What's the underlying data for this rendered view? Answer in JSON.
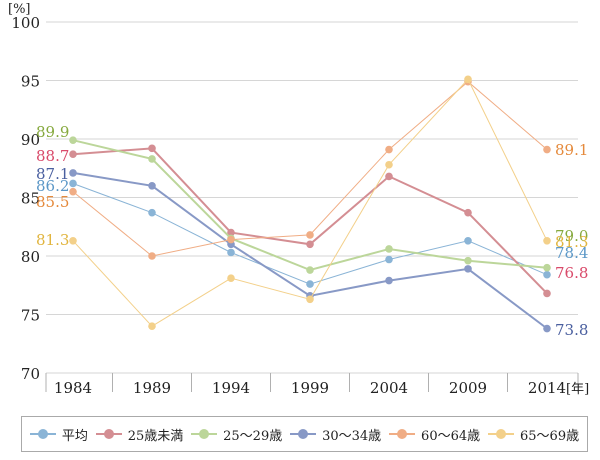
{
  "chart_data": {
    "type": "line",
    "y_unit_label": "[%]",
    "x_unit_label": "[年]",
    "categories": [
      "1984",
      "1989",
      "1994",
      "1999",
      "2004",
      "2009",
      "2014"
    ],
    "ylim": [
      70,
      100
    ],
    "yticks": [
      70,
      75,
      80,
      85,
      90,
      95,
      100
    ],
    "grid": "horizontal",
    "legend_position": "bottom",
    "series": [
      {
        "name": "平均",
        "color": "#8ab4d6",
        "values": [
          86.2,
          83.7,
          80.3,
          77.6,
          79.7,
          81.3,
          78.4
        ],
        "start_label": "86.2",
        "end_label": "78.4",
        "label_color": "#5b97c7"
      },
      {
        "name": "25歳未満",
        "color": "#d48e93",
        "values": [
          88.7,
          89.2,
          82.0,
          81.0,
          86.8,
          83.7,
          76.8
        ],
        "start_label": "88.7",
        "end_label": "76.8",
        "label_color": "#d94a6a"
      },
      {
        "name": "25～29歳",
        "color": "#bcd69a",
        "values": [
          89.9,
          88.3,
          81.5,
          78.8,
          80.6,
          79.6,
          79.0
        ],
        "start_label": "89.9",
        "end_label": "79.0",
        "label_color": "#86a93e"
      },
      {
        "name": "30～34歳",
        "color": "#8899c6",
        "values": [
          87.1,
          86.0,
          81.0,
          76.6,
          77.9,
          78.9,
          73.8
        ],
        "start_label": "87.1",
        "end_label": "73.8",
        "label_color": "#4a5f9f"
      },
      {
        "name": "60～64歳",
        "color": "#f0ad85",
        "values": [
          85.5,
          80.0,
          81.4,
          81.8,
          89.1,
          94.9,
          89.1
        ],
        "start_label": "85.5",
        "end_label": "89.1",
        "label_color": "#e58a3c"
      },
      {
        "name": "65～69歳",
        "color": "#f3d08a",
        "values": [
          81.3,
          74.0,
          78.1,
          76.3,
          87.8,
          95.1,
          81.3
        ],
        "start_label": "81.3",
        "end_label": "81.3",
        "label_color": "#e1b53f"
      }
    ]
  }
}
